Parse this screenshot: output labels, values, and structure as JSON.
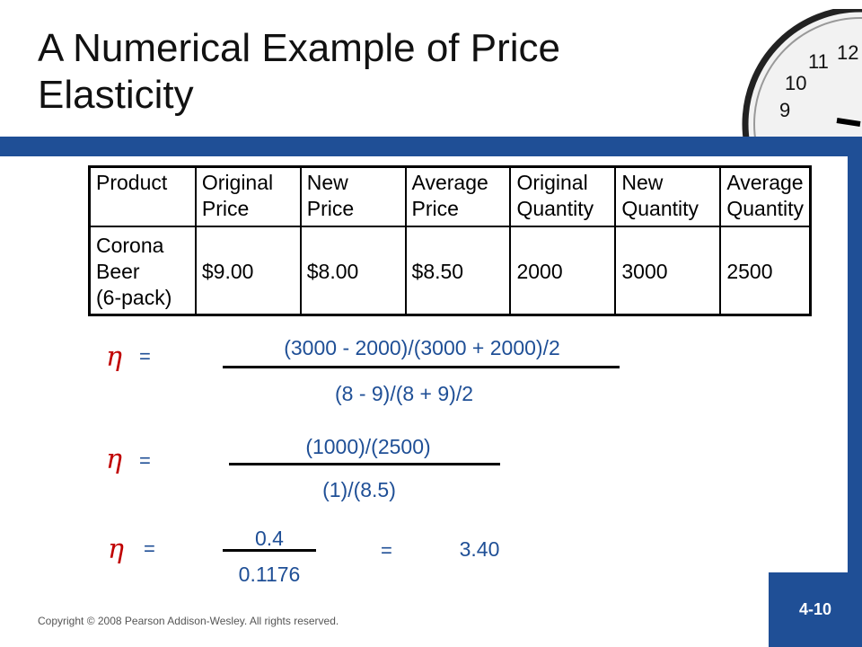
{
  "slide": {
    "title_line1": "A Numerical Example of Price",
    "title_line2": "Elasticity",
    "page_number": "4-10",
    "copyright": "Copyright © 2008 Pearson Addison-Wesley. All rights reserved.",
    "accent_color": "#1f4f96",
    "symbol_color": "#c00000"
  },
  "clock": {
    "numerals": [
      "9",
      "10",
      "11",
      "12"
    ]
  },
  "table": {
    "headers": [
      [
        "Product",
        ""
      ],
      [
        "Original",
        "Price"
      ],
      [
        "New",
        "Price"
      ],
      [
        "Average",
        "Price"
      ],
      [
        "Original",
        "Quantity"
      ],
      [
        "New",
        "Quantity"
      ],
      [
        "Average",
        "Quantity"
      ]
    ],
    "row": {
      "product": [
        "Corona",
        "Beer",
        "(6-pack)"
      ],
      "values": [
        "$9.00",
        "$8.00",
        "$8.50",
        "2000",
        "3000",
        "2500"
      ]
    }
  },
  "equations": [
    {
      "symbol": "η",
      "equals": "=",
      "numerator": "(3000 - 2000)/(3000 + 2000)/2",
      "denominator": "(8 - 9)/(8 + 9)/2"
    },
    {
      "symbol": "η",
      "equals": "=",
      "numerator": "(1000)/(2500)",
      "denominator": "(1)/(8.5)"
    },
    {
      "symbol": "η",
      "equals": "=",
      "numerator": "0.4",
      "denominator": "0.1176",
      "result_equals": "=",
      "result": "3.40"
    }
  ]
}
